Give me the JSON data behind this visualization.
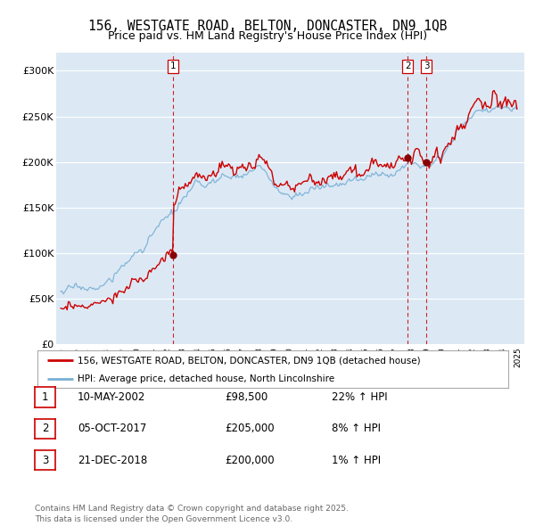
{
  "title": "156, WESTGATE ROAD, BELTON, DONCASTER, DN9 1QB",
  "subtitle": "Price paid vs. HM Land Registry's House Price Index (HPI)",
  "title_fontsize": 10.5,
  "subtitle_fontsize": 9,
  "ylim": [
    0,
    320000
  ],
  "yticks": [
    0,
    50000,
    100000,
    150000,
    200000,
    250000,
    300000
  ],
  "ytick_labels": [
    "£0",
    "£50K",
    "£100K",
    "£150K",
    "£200K",
    "£250K",
    "£300K"
  ],
  "background_color": "#ffffff",
  "plot_bg_color": "#dce9f5",
  "grid_color": "#ffffff",
  "red_color": "#cc0000",
  "blue_color": "#7aafd4",
  "transaction1": {
    "date": "10-MAY-2002",
    "price": 98500,
    "year": 2002.36,
    "label": "1"
  },
  "transaction2": {
    "date": "05-OCT-2017",
    "price": 205000,
    "year": 2017.76,
    "label": "2"
  },
  "transaction3": {
    "date": "21-DEC-2018",
    "price": 200000,
    "year": 2018.97,
    "label": "3"
  },
  "legend_entry1": "156, WESTGATE ROAD, BELTON, DONCASTER, DN9 1QB (detached house)",
  "legend_entry2": "HPI: Average price, detached house, North Lincolnshire",
  "footer": "Contains HM Land Registry data © Crown copyright and database right 2025.\nThis data is licensed under the Open Government Licence v3.0.",
  "table_rows": [
    {
      "num": "1",
      "date": "10-MAY-2002",
      "price": "£98,500",
      "change": "22% ↑ HPI"
    },
    {
      "num": "2",
      "date": "05-OCT-2017",
      "price": "£205,000",
      "change": "8% ↑ HPI"
    },
    {
      "num": "3",
      "date": "21-DEC-2018",
      "price": "£200,000",
      "change": "1% ↑ HPI"
    }
  ]
}
